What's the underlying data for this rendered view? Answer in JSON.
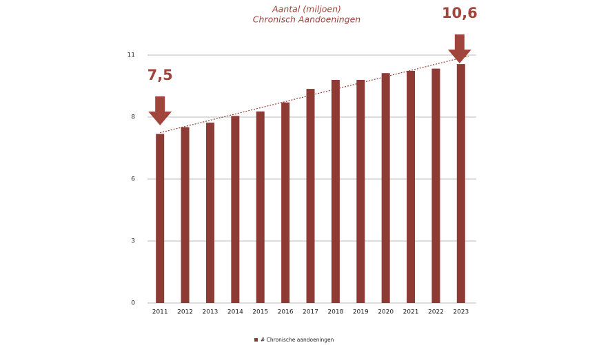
{
  "chart_data": {
    "type": "bar",
    "title": "Aantal (miljoen)",
    "subtitle": "Chronisch Aandoeningen",
    "categories": [
      "2011",
      "2012",
      "2013",
      "2014",
      "2015",
      "2016",
      "2017",
      "2018",
      "2019",
      "2020",
      "2021",
      "2022",
      "2023"
    ],
    "series": [
      {
        "name": "# Chronische aandoeningen",
        "color": "#8e3b36",
        "values": [
          7.5,
          7.8,
          8.0,
          8.3,
          8.5,
          8.9,
          9.5,
          9.9,
          9.9,
          10.2,
          10.3,
          10.4,
          10.6
        ]
      }
    ],
    "ylim": [
      0,
      11
    ],
    "yticks": [
      0,
      {
        "value": 2.75,
        "label": "3"
      },
      {
        "value": 5.5,
        "label": "6"
      },
      {
        "value": 8.25,
        "label": "8"
      },
      11
    ],
    "grid": true,
    "trendline": true,
    "annotations": [
      "7,5",
      "10,6"
    ]
  }
}
